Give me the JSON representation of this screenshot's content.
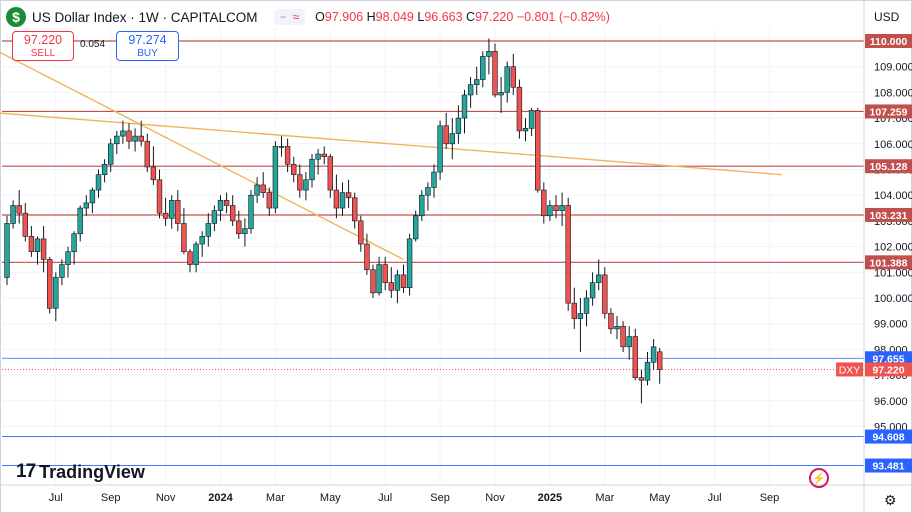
{
  "header": {
    "flag_letter": "$",
    "title": "US Dollar Index · 1W · CAPITALCOM",
    "ohlc": [
      {
        "k": "O",
        "v": "97.906"
      },
      {
        "k": "H",
        "v": "98.049"
      },
      {
        "k": "L",
        "v": "96.663"
      },
      {
        "k": "C",
        "v": "97.220"
      }
    ],
    "change": "−0.801 (−0.82%)"
  },
  "trade": {
    "sell_price": "97.220",
    "sell_label": "SELL",
    "spread": "0.054",
    "buy_price": "97.274",
    "buy_label": "BUY"
  },
  "currency": "USD",
  "logo_text": "TradingView",
  "colors": {
    "up": "#26a69a",
    "down": "#ef5350",
    "resistance": "#c0504d",
    "trendline": "#f0b45a",
    "grid": "#f0f3fa",
    "price_tag": "#ef5350",
    "marker": "#2962ff",
    "text": "#131722"
  },
  "chart_data": {
    "type": "candlestick",
    "symbol": "DXY",
    "timeframe": "1W",
    "y_ticks": [
      95,
      96,
      97,
      98,
      99,
      100,
      101,
      102,
      103,
      104,
      105,
      106,
      107,
      108,
      109,
      110
    ],
    "x_ticks": [
      {
        "label": "Jul",
        "bold": false,
        "bar": 8
      },
      {
        "label": "Sep",
        "bold": false,
        "bar": 17
      },
      {
        "label": "Nov",
        "bold": false,
        "bar": 26
      },
      {
        "label": "2024",
        "bold": true,
        "bar": 35
      },
      {
        "label": "Mar",
        "bold": false,
        "bar": 44
      },
      {
        "label": "May",
        "bold": false,
        "bar": 53
      },
      {
        "label": "Jul",
        "bold": false,
        "bar": 62
      },
      {
        "label": "Sep",
        "bold": false,
        "bar": 71
      },
      {
        "label": "Nov",
        "bold": false,
        "bar": 80
      },
      {
        "label": "2025",
        "bold": true,
        "bar": 89
      },
      {
        "label": "Mar",
        "bold": false,
        "bar": 98
      },
      {
        "label": "May",
        "bold": false,
        "bar": 107
      },
      {
        "label": "Jul",
        "bold": false,
        "bar": 116
      },
      {
        "label": "Sep",
        "bold": false,
        "bar": 125
      }
    ],
    "horizontal_levels": [
      {
        "value": 110.0,
        "label": "110.000",
        "style": "resistance"
      },
      {
        "value": 107.259,
        "label": "107.259",
        "style": "resistance"
      },
      {
        "value": 105.128,
        "label": "105.128",
        "style": "resistance"
      },
      {
        "value": 103.231,
        "label": "103.231",
        "style": "resistance"
      },
      {
        "value": 101.388,
        "label": "101.388",
        "style": "resistance"
      },
      {
        "value": 97.655,
        "label": "97.655",
        "style": "marker"
      },
      {
        "value": 94.608,
        "label": "94.608",
        "style": "marker"
      },
      {
        "value": 93.481,
        "label": "93.481",
        "style": "marker"
      }
    ],
    "current_price": {
      "value": 97.22,
      "label": "97.220",
      "symbol_tag": "DXY"
    },
    "trendlines": [
      {
        "from": {
          "bar": -1.5,
          "value": 109.6
        },
        "to": {
          "bar": 65,
          "value": 101.5
        }
      },
      {
        "from": {
          "bar": -1.5,
          "value": 107.2
        },
        "to": {
          "bar": 127,
          "value": 104.8
        }
      }
    ],
    "ohlc": [
      [
        100.8,
        103.2,
        100.5,
        102.9
      ],
      [
        102.9,
        103.8,
        102.7,
        103.6
      ],
      [
        103.6,
        104.2,
        102.9,
        103.3
      ],
      [
        103.3,
        103.7,
        102.2,
        102.4
      ],
      [
        102.4,
        102.8,
        101.6,
        101.8
      ],
      [
        101.8,
        102.4,
        101.3,
        102.3
      ],
      [
        102.3,
        102.8,
        101.0,
        101.5
      ],
      [
        101.5,
        101.6,
        99.4,
        99.6
      ],
      [
        99.6,
        101.0,
        99.1,
        100.8
      ],
      [
        100.8,
        101.5,
        100.5,
        101.3
      ],
      [
        101.3,
        102.0,
        100.8,
        101.8
      ],
      [
        101.8,
        102.6,
        101.3,
        102.5
      ],
      [
        102.5,
        103.6,
        102.2,
        103.5
      ],
      [
        103.5,
        104.0,
        103.2,
        103.7
      ],
      [
        103.7,
        104.3,
        103.3,
        104.2
      ],
      [
        104.2,
        105.0,
        103.9,
        104.8
      ],
      [
        104.8,
        105.4,
        104.5,
        105.2
      ],
      [
        105.2,
        106.2,
        104.9,
        106.0
      ],
      [
        106.0,
        106.5,
        105.6,
        106.3
      ],
      [
        106.3,
        106.9,
        106.0,
        106.5
      ],
      [
        106.5,
        106.8,
        105.8,
        106.1
      ],
      [
        106.1,
        106.6,
        105.7,
        106.3
      ],
      [
        106.3,
        106.9,
        105.9,
        106.1
      ],
      [
        106.1,
        106.4,
        104.9,
        105.1
      ],
      [
        105.1,
        105.9,
        104.4,
        104.6
      ],
      [
        104.6,
        105.0,
        103.1,
        103.3
      ],
      [
        103.3,
        103.9,
        102.8,
        103.1
      ],
      [
        103.1,
        104.0,
        102.7,
        103.8
      ],
      [
        103.8,
        104.2,
        102.6,
        102.9
      ],
      [
        102.9,
        103.5,
        101.7,
        101.8
      ],
      [
        101.8,
        101.9,
        101.0,
        101.3
      ],
      [
        101.3,
        102.2,
        101.0,
        102.1
      ],
      [
        102.1,
        102.6,
        101.6,
        102.4
      ],
      [
        102.4,
        103.3,
        102.0,
        102.9
      ],
      [
        102.9,
        103.6,
        102.6,
        103.4
      ],
      [
        103.4,
        104.0,
        103.0,
        103.8
      ],
      [
        103.8,
        104.1,
        103.3,
        103.6
      ],
      [
        103.6,
        104.0,
        102.8,
        103.0
      ],
      [
        103.0,
        103.4,
        102.3,
        102.5
      ],
      [
        102.5,
        103.1,
        102.0,
        102.7
      ],
      [
        102.7,
        104.2,
        102.5,
        104.0
      ],
      [
        104.0,
        104.7,
        103.7,
        104.4
      ],
      [
        104.4,
        104.9,
        103.9,
        104.1
      ],
      [
        104.1,
        104.3,
        103.2,
        103.5
      ],
      [
        103.5,
        106.1,
        103.3,
        105.9
      ],
      [
        105.9,
        106.3,
        105.5,
        105.9
      ],
      [
        105.9,
        106.2,
        104.9,
        105.2
      ],
      [
        105.2,
        105.5,
        104.5,
        104.8
      ],
      [
        104.8,
        105.2,
        103.9,
        104.2
      ],
      [
        104.2,
        104.9,
        103.8,
        104.6
      ],
      [
        104.6,
        105.6,
        104.3,
        105.4
      ],
      [
        105.4,
        105.8,
        104.8,
        105.6
      ],
      [
        105.6,
        105.9,
        105.2,
        105.5
      ],
      [
        105.5,
        105.6,
        103.9,
        104.2
      ],
      [
        104.2,
        104.8,
        103.1,
        103.5
      ],
      [
        103.5,
        104.5,
        103.2,
        104.1
      ],
      [
        104.1,
        104.6,
        103.5,
        103.9
      ],
      [
        103.9,
        104.1,
        102.7,
        103.0
      ],
      [
        103.0,
        103.2,
        101.8,
        102.1
      ],
      [
        102.1,
        102.5,
        100.9,
        101.1
      ],
      [
        101.1,
        101.3,
        100.0,
        100.2
      ],
      [
        100.2,
        101.6,
        100.1,
        101.3
      ],
      [
        101.3,
        101.6,
        100.3,
        100.6
      ],
      [
        100.6,
        101.2,
        100.0,
        100.3
      ],
      [
        100.3,
        101.1,
        99.8,
        100.9
      ],
      [
        100.9,
        101.3,
        100.2,
        100.4
      ],
      [
        100.4,
        102.5,
        100.1,
        102.3
      ],
      [
        102.3,
        103.4,
        102.2,
        103.2
      ],
      [
        103.2,
        104.2,
        103.0,
        104.0
      ],
      [
        104.0,
        104.5,
        103.4,
        104.3
      ],
      [
        104.3,
        105.2,
        103.9,
        104.9
      ],
      [
        104.9,
        106.9,
        104.6,
        106.7
      ],
      [
        106.7,
        107.2,
        105.8,
        106.0
      ],
      [
        106.0,
        107.0,
        105.4,
        106.4
      ],
      [
        106.4,
        107.5,
        106.0,
        107.0
      ],
      [
        107.0,
        108.1,
        106.4,
        107.9
      ],
      [
        107.9,
        108.6,
        107.4,
        108.3
      ],
      [
        108.3,
        109.0,
        107.9,
        108.5
      ],
      [
        108.5,
        109.6,
        108.2,
        109.4
      ],
      [
        109.4,
        110.1,
        108.7,
        109.6
      ],
      [
        109.6,
        109.9,
        107.8,
        107.9
      ],
      [
        107.9,
        108.6,
        107.2,
        108.0
      ],
      [
        108.0,
        109.2,
        107.6,
        109.0
      ],
      [
        109.0,
        109.5,
        107.9,
        108.2
      ],
      [
        108.2,
        108.5,
        106.2,
        106.5
      ],
      [
        106.5,
        107.0,
        106.1,
        106.6
      ],
      [
        106.6,
        107.4,
        106.3,
        107.3
      ],
      [
        107.3,
        107.4,
        104.1,
        104.2
      ],
      [
        104.2,
        104.5,
        102.9,
        103.2
      ],
      [
        103.2,
        103.8,
        103.0,
        103.6
      ],
      [
        103.6,
        104.0,
        103.1,
        103.4
      ],
      [
        103.4,
        104.1,
        102.8,
        103.6
      ],
      [
        103.6,
        103.9,
        99.5,
        99.8
      ],
      [
        99.8,
        100.4,
        98.8,
        99.2
      ],
      [
        99.2,
        100.0,
        97.9,
        99.4
      ],
      [
        99.4,
        100.3,
        98.9,
        100.0
      ],
      [
        100.0,
        101.0,
        99.7,
        100.6
      ],
      [
        100.6,
        101.5,
        100.3,
        100.9
      ],
      [
        100.9,
        101.2,
        99.2,
        99.4
      ],
      [
        99.4,
        99.6,
        98.6,
        98.8
      ],
      [
        98.8,
        99.3,
        98.4,
        98.9
      ],
      [
        98.9,
        99.1,
        97.9,
        98.1
      ],
      [
        98.1,
        98.9,
        97.6,
        98.5
      ],
      [
        98.5,
        98.8,
        96.8,
        96.9
      ],
      [
        96.9,
        97.2,
        95.9,
        96.8
      ],
      [
        96.8,
        97.9,
        96.6,
        97.5
      ],
      [
        97.5,
        98.4,
        97.2,
        98.1
      ],
      [
        97.906,
        98.049,
        96.663,
        97.22
      ]
    ]
  }
}
